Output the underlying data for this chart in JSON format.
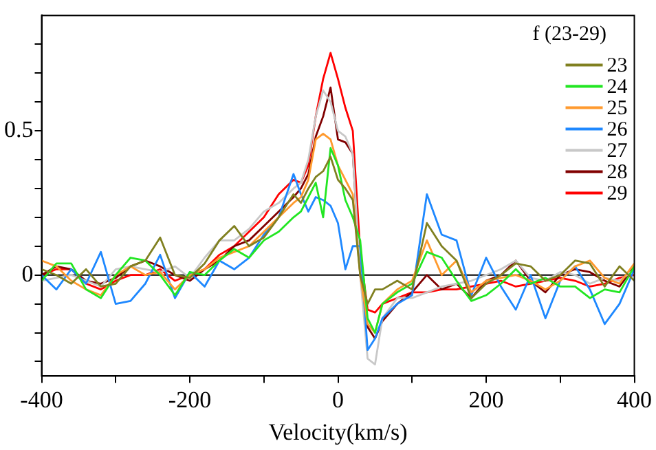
{
  "chart_data": {
    "type": "line",
    "xlabel": "Velocity(km/s)",
    "legend_title": "f (23-29)",
    "legend": "top right",
    "grid": false,
    "marker": "none",
    "line_style": "solid",
    "x": [
      -400,
      -380,
      -360,
      -340,
      -320,
      -300,
      -280,
      -260,
      -240,
      -220,
      -200,
      -180,
      -160,
      -140,
      -120,
      -100,
      -80,
      -60,
      -50,
      -40,
      -30,
      -20,
      -10,
      0,
      10,
      20,
      30,
      40,
      50,
      60,
      80,
      100,
      120,
      140,
      160,
      180,
      200,
      220,
      240,
      260,
      280,
      300,
      320,
      340,
      360,
      380,
      400
    ],
    "xlim": [
      -400,
      400
    ],
    "xticks": [
      -400,
      {
        "value": -300,
        "label": null
      },
      -200,
      {
        "value": -100,
        "label": null
      },
      0,
      {
        "value": 100,
        "label": null
      },
      200,
      {
        "value": 300,
        "label": null
      },
      400
    ],
    "ylim": [
      -0.35,
      0.9
    ],
    "yticks": [
      {
        "value": -0.3,
        "label": null
      },
      {
        "value": -0.2,
        "label": null
      },
      {
        "value": -0.1,
        "label": null
      },
      0,
      {
        "value": 0.1,
        "label": null
      },
      {
        "value": 0.2,
        "label": null
      },
      {
        "value": 0.3,
        "label": null
      },
      {
        "value": 0.4,
        "label": null
      },
      0.5,
      {
        "value": 0.6,
        "label": null
      },
      {
        "value": 0.7,
        "label": null
      },
      {
        "value": 0.8,
        "label": null
      }
    ],
    "ref_lines": [
      {
        "axis": "y",
        "value": 0,
        "color": "#000000"
      }
    ],
    "series": [
      {
        "name": "23",
        "color": "#808020",
        "values": [
          0.02,
          0.0,
          -0.03,
          0.02,
          -0.04,
          -0.03,
          0.03,
          0.05,
          0.13,
          0.0,
          -0.01,
          0.04,
          0.12,
          0.17,
          0.1,
          0.13,
          0.2,
          0.28,
          0.25,
          0.3,
          0.34,
          0.36,
          0.41,
          0.33,
          0.3,
          0.26,
          0.0,
          -0.1,
          -0.05,
          -0.05,
          -0.02,
          -0.05,
          0.18,
          0.1,
          0.05,
          -0.08,
          -0.03,
          0.0,
          0.04,
          0.03,
          -0.02,
          0.0,
          0.05,
          0.04,
          -0.04,
          0.03,
          -0.02
        ]
      },
      {
        "name": "24",
        "color": "#22e622",
        "values": [
          -0.02,
          0.04,
          0.04,
          -0.05,
          -0.08,
          0.0,
          0.06,
          0.05,
          0.0,
          -0.07,
          0.01,
          0.0,
          0.05,
          0.09,
          0.06,
          0.12,
          0.15,
          0.2,
          0.22,
          0.27,
          0.32,
          0.2,
          0.44,
          0.38,
          0.26,
          0.2,
          0.12,
          -0.15,
          -0.2,
          -0.1,
          -0.06,
          -0.03,
          0.08,
          0.06,
          -0.02,
          -0.09,
          -0.07,
          -0.03,
          0.02,
          -0.03,
          -0.01,
          -0.04,
          -0.04,
          -0.08,
          -0.05,
          -0.06,
          0.03
        ]
      },
      {
        "name": "25",
        "color": "#ff9a2e",
        "values": [
          0.05,
          0.03,
          -0.02,
          -0.05,
          -0.07,
          0.0,
          0.03,
          0.0,
          0.01,
          -0.05,
          0.0,
          0.02,
          0.06,
          0.08,
          0.1,
          0.15,
          0.2,
          0.25,
          0.27,
          0.33,
          0.47,
          0.49,
          0.47,
          0.38,
          0.33,
          0.28,
          0.0,
          -0.17,
          -0.2,
          -0.1,
          -0.05,
          -0.02,
          0.12,
          0.0,
          0.05,
          -0.06,
          -0.02,
          -0.01,
          0.0,
          -0.02,
          -0.05,
          -0.02,
          0.03,
          0.05,
          -0.01,
          -0.03,
          0.04
        ]
      },
      {
        "name": "26",
        "color": "#1e88ff",
        "values": [
          0.0,
          -0.05,
          0.02,
          -0.03,
          0.08,
          -0.1,
          -0.09,
          -0.03,
          0.07,
          -0.08,
          0.01,
          -0.04,
          0.05,
          0.02,
          0.06,
          0.14,
          0.2,
          0.35,
          0.28,
          0.22,
          0.27,
          0.26,
          0.24,
          0.18,
          0.02,
          0.1,
          0.1,
          -0.26,
          -0.22,
          -0.15,
          -0.1,
          -0.07,
          0.28,
          0.14,
          0.12,
          -0.07,
          0.06,
          -0.04,
          -0.12,
          0.0,
          -0.15,
          -0.02,
          0.03,
          -0.05,
          -0.17,
          -0.1,
          0.02
        ]
      },
      {
        "name": "27",
        "color": "#c8c8c8",
        "values": [
          -0.02,
          -0.01,
          0.0,
          -0.02,
          -0.04,
          0.02,
          0.03,
          0.02,
          0.01,
          0.03,
          -0.01,
          0.06,
          0.12,
          0.12,
          0.16,
          0.22,
          0.25,
          0.3,
          0.32,
          0.4,
          0.55,
          0.64,
          0.6,
          0.5,
          0.48,
          0.42,
          0.0,
          -0.29,
          -0.31,
          -0.15,
          -0.08,
          -0.08,
          -0.06,
          -0.04,
          -0.03,
          -0.02,
          0.0,
          0.02,
          0.05,
          -0.01,
          -0.02,
          0.01,
          0.0,
          -0.03,
          -0.01,
          -0.02,
          0.02
        ]
      },
      {
        "name": "28",
        "color": "#800000",
        "values": [
          0.0,
          0.03,
          0.02,
          -0.02,
          -0.03,
          -0.01,
          0.03,
          0.05,
          0.03,
          0.0,
          -0.02,
          0.02,
          0.05,
          0.1,
          0.12,
          0.17,
          0.22,
          0.27,
          0.3,
          0.35,
          0.48,
          0.55,
          0.65,
          0.47,
          0.46,
          0.42,
          0.0,
          -0.18,
          -0.22,
          -0.16,
          -0.1,
          -0.06,
          0.0,
          -0.05,
          -0.03,
          -0.08,
          -0.02,
          0.0,
          0.05,
          -0.02,
          -0.06,
          0.0,
          0.02,
          0.01,
          -0.02,
          -0.04,
          0.03
        ]
      },
      {
        "name": "29",
        "color": "#ff0000",
        "values": [
          0.0,
          0.02,
          0.02,
          -0.03,
          -0.05,
          -0.02,
          0.0,
          0.0,
          0.02,
          -0.02,
          0.0,
          0.02,
          0.07,
          0.1,
          0.15,
          0.2,
          0.28,
          0.33,
          0.32,
          0.38,
          0.55,
          0.68,
          0.77,
          0.68,
          0.58,
          0.5,
          0.08,
          -0.12,
          -0.13,
          -0.1,
          -0.08,
          -0.06,
          -0.06,
          -0.05,
          -0.05,
          -0.04,
          -0.03,
          -0.02,
          -0.04,
          -0.03,
          -0.02,
          -0.01,
          -0.02,
          -0.04,
          -0.03,
          -0.01,
          0.0
        ]
      }
    ]
  }
}
